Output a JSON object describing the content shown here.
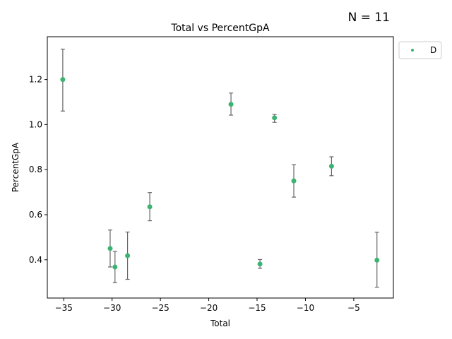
{
  "chart_data": {
    "type": "scatter",
    "title": "Total vs PercentGpA",
    "xlabel": "Total",
    "ylabel": "PercentGpA",
    "annotation": "N = 11",
    "xlim": [
      -36.7,
      -0.9
    ],
    "ylim": [
      0.23,
      1.39
    ],
    "xticks": [
      -35,
      -30,
      -25,
      -20,
      -15,
      -10,
      -5
    ],
    "yticks": [
      0.4,
      0.6,
      0.8,
      1.0,
      1.2
    ],
    "xtick_labels": [
      "−35",
      "−30",
      "−25",
      "−20",
      "−15",
      "−10",
      "−5"
    ],
    "ytick_labels": [
      "0.4",
      "0.6",
      "0.8",
      "1.0",
      "1.2"
    ],
    "grid": false,
    "legend_position": "outside-top-right",
    "series": [
      {
        "name": "D",
        "color": "#3cb371",
        "error_color": "#666666",
        "points": [
          {
            "x": -35.1,
            "y": 1.2,
            "lo": 1.06,
            "hi": 1.335
          },
          {
            "x": -30.2,
            "y": 0.45,
            "lo": 0.368,
            "hi": 0.532
          },
          {
            "x": -29.7,
            "y": 0.368,
            "lo": 0.298,
            "hi": 0.437
          },
          {
            "x": -28.4,
            "y": 0.418,
            "lo": 0.313,
            "hi": 0.523
          },
          {
            "x": -26.1,
            "y": 0.635,
            "lo": 0.573,
            "hi": 0.698
          },
          {
            "x": -17.7,
            "y": 1.09,
            "lo": 1.042,
            "hi": 1.14
          },
          {
            "x": -14.7,
            "y": 0.381,
            "lo": 0.362,
            "hi": 0.401
          },
          {
            "x": -13.2,
            "y": 1.03,
            "lo": 1.01,
            "hi": 1.045
          },
          {
            "x": -11.2,
            "y": 0.75,
            "lo": 0.678,
            "hi": 0.822
          },
          {
            "x": -7.3,
            "y": 0.815,
            "lo": 0.773,
            "hi": 0.857
          },
          {
            "x": -2.6,
            "y": 0.398,
            "lo": 0.278,
            "hi": 0.522
          }
        ]
      }
    ]
  }
}
